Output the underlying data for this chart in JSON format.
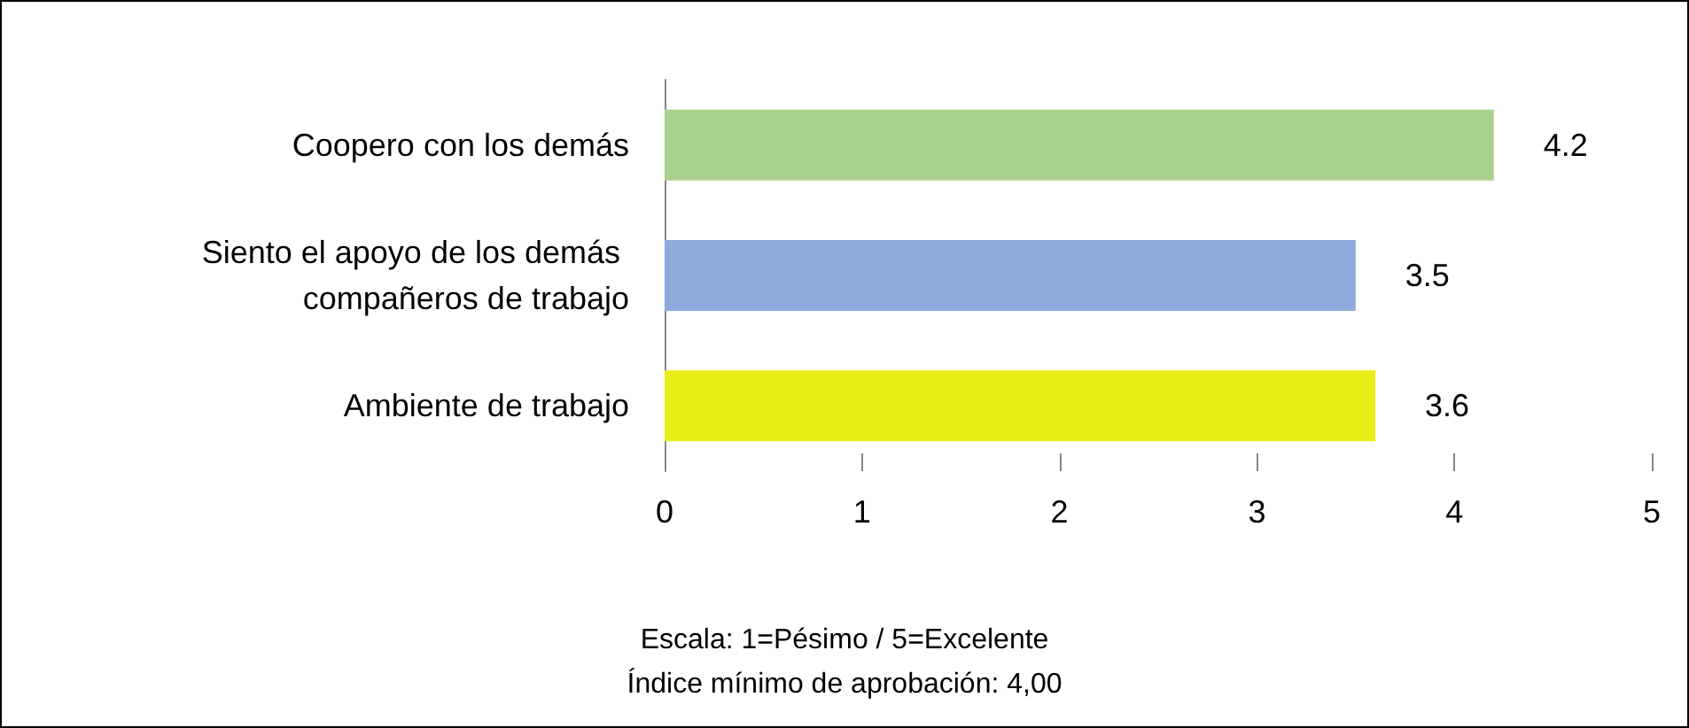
{
  "chart_data": {
    "type": "bar",
    "orientation": "horizontal",
    "categories": [
      "Coopero con los demás",
      "Siento el apoyo de los demás compañeros de trabajo",
      "Ambiente de trabajo"
    ],
    "values": [
      4.2,
      3.5,
      3.6
    ],
    "colors": [
      "#a9d18e",
      "#8faadc",
      "#e8ef17"
    ],
    "xlim": [
      0,
      5
    ],
    "xticks": [
      0,
      1,
      2,
      3,
      4,
      5
    ],
    "data_labels": true,
    "grid": false,
    "annotations": [
      "Escala: 1=Pésimo / 5=Excelente",
      "Índice mínimo de aprobación: 4,00"
    ]
  }
}
